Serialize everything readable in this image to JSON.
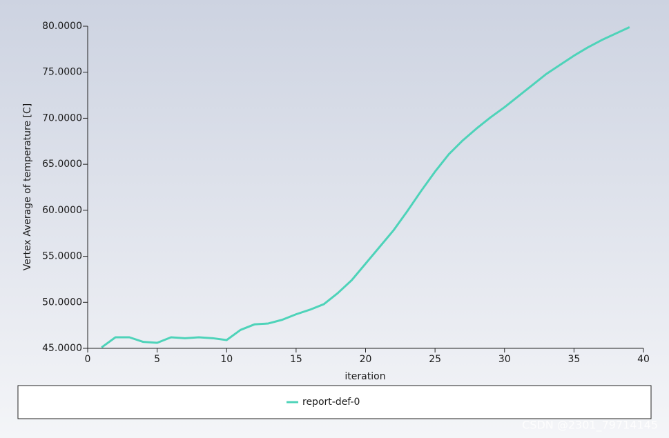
{
  "chart_data": {
    "type": "line",
    "xlabel": "iteration",
    "ylabel": "Vertex Average of temperature [C]",
    "x": [
      1,
      2,
      3,
      4,
      5,
      6,
      7,
      8,
      9,
      10,
      11,
      12,
      13,
      14,
      15,
      16,
      17,
      18,
      19,
      20,
      21,
      22,
      23,
      24,
      25,
      26,
      27,
      28,
      29,
      30,
      31,
      32,
      33,
      34,
      35,
      36,
      37,
      38,
      39
    ],
    "series": [
      {
        "name": "report-def-0",
        "color": "#4ed3b9",
        "values": [
          45.1,
          46.2,
          46.2,
          45.7,
          45.6,
          46.2,
          46.1,
          46.2,
          46.1,
          45.9,
          47.0,
          47.6,
          47.7,
          48.1,
          48.7,
          49.2,
          49.8,
          51.0,
          52.4,
          54.2,
          56.0,
          57.8,
          59.9,
          62.1,
          64.2,
          66.1,
          67.6,
          68.9,
          70.1,
          71.2,
          72.4,
          73.6,
          74.8,
          75.8,
          76.8,
          77.7,
          78.5,
          79.2,
          79.9
        ]
      }
    ],
    "xlim": [
      0,
      40
    ],
    "xticks": [
      0,
      5,
      10,
      15,
      20,
      25,
      30,
      35,
      40
    ],
    "ylim": [
      45,
      80
    ],
    "yticks": [
      {
        "value": 45,
        "label": "45.0000"
      },
      {
        "value": 50,
        "label": "50.0000"
      },
      {
        "value": 55,
        "label": "55.0000"
      },
      {
        "value": 60,
        "label": "60.0000"
      },
      {
        "value": 65,
        "label": "65.0000"
      },
      {
        "value": 70,
        "label": "70.0000"
      },
      {
        "value": 75,
        "label": "75.0000"
      },
      {
        "value": 80,
        "label": "80.0000"
      }
    ],
    "legend": "bottom",
    "watermark": "CSDN @2301_79714145"
  }
}
